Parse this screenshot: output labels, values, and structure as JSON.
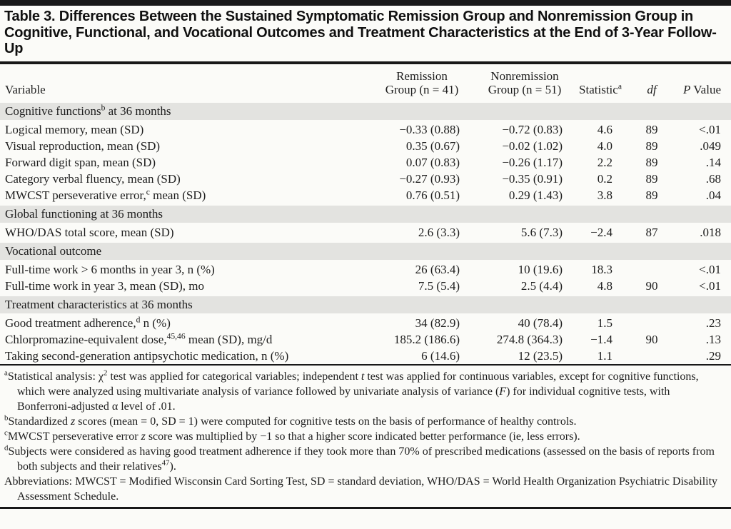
{
  "table": {
    "title": "Table 3. Differences Between the Sustained Symptomatic Remission Group and Nonremission Group in Cognitive, Functional, and Vocational Outcomes and Treatment Characteristics at the End of 3-Year Follow-Up",
    "columns": [
      "Variable",
      "Remission\nGroup (n = 41)",
      "Nonremission\nGroup (n = 51)",
      "Statistic{sup:a}",
      "{i:df}",
      "{i:P} Value"
    ],
    "sections": [
      {
        "header": "Cognitive functions{sup:b} at 36 months",
        "rows": [
          [
            "Logical memory, mean (SD)",
            "−0.33 (0.88)",
            "−0.72 (0.83)",
            "4.6",
            "89",
            "<.01"
          ],
          [
            "Visual reproduction, mean (SD)",
            "0.35 (0.67)",
            "−0.02 (1.02)",
            "4.0",
            "89",
            ".049"
          ],
          [
            "Forward digit span, mean (SD)",
            "0.07 (0.83)",
            "−0.26 (1.17)",
            "2.2",
            "89",
            ".14"
          ],
          [
            "Category verbal fluency, mean (SD)",
            "−0.27 (0.93)",
            "−0.35 (0.91)",
            "0.2",
            "89",
            ".68"
          ],
          [
            "MWCST perseverative error,{sup:c} mean (SD)",
            "0.76 (0.51)",
            "0.29 (1.43)",
            "3.8",
            "89",
            ".04"
          ]
        ]
      },
      {
        "header": "Global functioning at 36 months",
        "rows": [
          [
            "WHO/DAS total score, mean (SD)",
            "2.6 (3.3)",
            "5.6 (7.3)",
            "−2.4",
            "87",
            ".018"
          ]
        ]
      },
      {
        "header": "Vocational outcome",
        "rows": [
          [
            "Full-time work > 6 months in year 3, n (%)",
            "26 (63.4)",
            "10 (19.6)",
            "18.3",
            "",
            "<.01"
          ],
          [
            "Full-time work in year 3, mean (SD), mo",
            "7.5 (5.4)",
            "2.5 (4.4)",
            "4.8",
            "90",
            "<.01"
          ]
        ]
      },
      {
        "header": "Treatment characteristics at 36 months",
        "rows": [
          [
            "Good treatment adherence,{sup:d} n (%)",
            "34 (82.9)",
            "40 (78.4)",
            "1.5",
            "",
            ".23"
          ],
          [
            "Chlorpromazine-equivalent dose,{sup:45,46} mean (SD), mg/d",
            "185.2 (186.6)",
            "274.8 (364.3)",
            "−1.4",
            "90",
            ".13"
          ],
          [
            "Taking second-generation antipsychotic medication, n (%)",
            "6 (14.6)",
            "12 (23.5)",
            "1.1",
            "",
            ".29"
          ]
        ]
      }
    ],
    "footnotes": [
      "{sup:a}Statistical analysis: χ{sup:2} test was applied for categorical variables; independent {i:t} test was applied for continuous variables, except for cognitive functions, which were analyzed using multivariate analysis of variance followed by univariate analysis of variance ({i:F}) for individual cognitive tests, with Bonferroni-adjusted α level of .01.",
      "{sup:b}Standardized {i:z} scores (mean = 0, SD = 1) were computed for cognitive tests on the basis of performance of healthy controls.",
      "{sup:c}MWCST perseverative error {i:z} score was multiplied by −1 so that a higher score indicated better performance (ie, less errors).",
      "{sup:d}Subjects were considered as having good treatment adherence if they took more than 70% of prescribed medications (assessed on the basis of reports from both subjects and their relatives{sup:47})."
    ],
    "abbreviations": "Abbreviations: MWCST = Modified Wisconsin Card Sorting Test, SD = standard deviation, WHO/DAS = World Health Organization Psychiatric Disability Assessment Schedule.",
    "colors": {
      "rule_black": "#181818",
      "section_band": "#e3e3e0",
      "page_bg": "#fbfbf8",
      "text": "#1d1d1d"
    }
  }
}
